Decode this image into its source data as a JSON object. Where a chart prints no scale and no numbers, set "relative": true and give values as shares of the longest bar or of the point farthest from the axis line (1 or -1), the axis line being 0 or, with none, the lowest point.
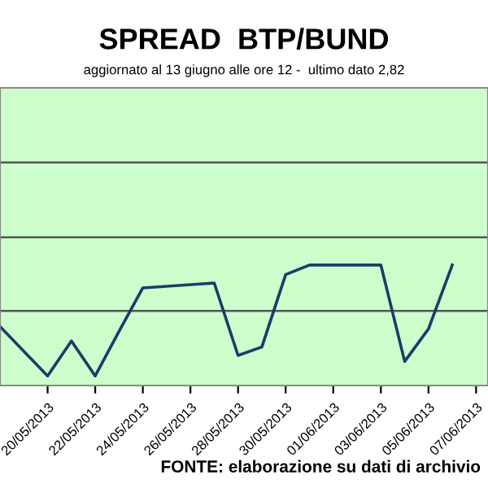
{
  "chart_data": {
    "type": "line",
    "title": "SPREAD  BTP/BUND",
    "subtitle": "aggiornato al 13 giugno alle ore 12 -  ultimo dato 2,82",
    "annotations": [
      "FONTE: elaborazione su dati di archivio"
    ],
    "relative": true,
    "x": [
      "2013-05-18",
      "2013-05-20",
      "2013-05-21",
      "2013-05-22",
      "2013-05-23",
      "2013-05-24",
      "2013-05-27",
      "2013-05-28",
      "2013-05-29",
      "2013-05-30",
      "2013-05-31",
      "2013-06-03",
      "2013-06-04",
      "2013-06-05",
      "2013-06-06"
    ],
    "series": [
      {
        "color": "#1f3a68",
        "values": [
          0.49,
          0.08,
          0.37,
          0.08,
          0.45,
          0.81,
          0.85,
          0.25,
          0.32,
          0.92,
          1.0,
          1.0,
          0.2,
          0.47,
          1.0
        ]
      }
    ],
    "xlim": [
      "2013-05-18",
      "2013-06-07T12:00"
    ],
    "ref_lines": [
      {
        "axis": "y",
        "value": 0.62
      },
      {
        "axis": "y",
        "value": 1.23
      },
      {
        "axis": "y",
        "value": 1.85
      }
    ],
    "xticks": [
      {
        "value": "2013-05-20",
        "label": "20/05/2013"
      },
      {
        "value": "2013-05-22",
        "label": "22/05/2013"
      },
      {
        "value": "2013-05-24",
        "label": "24/05/2013"
      },
      {
        "value": "2013-05-26",
        "label": "26/05/2013"
      },
      {
        "value": "2013-05-28",
        "label": "28/05/2013"
      },
      {
        "value": "2013-05-30",
        "label": "30/05/2013"
      },
      {
        "value": "2013-06-01",
        "label": "01/06/2013"
      },
      {
        "value": "2013-06-03",
        "label": "03/06/2013"
      },
      {
        "value": "2013-06-05",
        "label": "05/06/2013"
      },
      {
        "value": "2013-06-07",
        "label": "07/06/2013"
      }
    ],
    "legend": false,
    "marker": "none",
    "line_style": "solid"
  }
}
